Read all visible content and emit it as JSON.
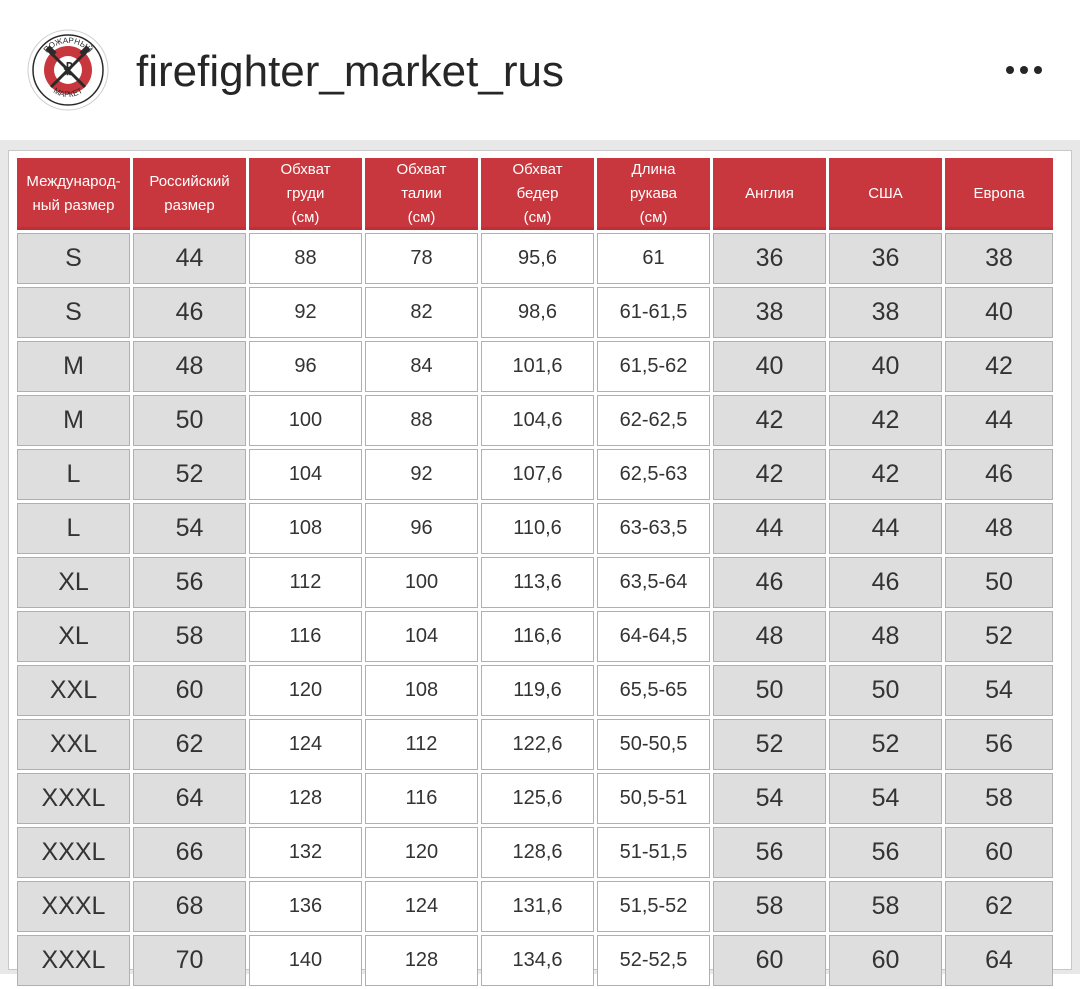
{
  "account": {
    "username": "firefighter_market_rus",
    "avatar_icon": "firefighter-market-logo-icon",
    "logo_text_top": "ПОЖАРНЫЙ",
    "logo_text_bottom": "МАРКЕТ",
    "more_icon": "more-horizontal-icon"
  },
  "colors": {
    "header_red": "#c8373d",
    "cell_gray": "#dedede"
  },
  "table": {
    "headers": [
      "Междунарoд-\nный размер",
      "Российский\nразмер",
      "Обхват\nгруди\n(см)",
      "Обхват\nталии\n(см)",
      "Обхват\nбедер\n(см)",
      "Длина\nрукава\n(см)",
      "Англия",
      "США",
      "Европа"
    ],
    "rows": [
      [
        "S",
        "44",
        "88",
        "78",
        "95,6",
        "61",
        "36",
        "36",
        "38"
      ],
      [
        "S",
        "46",
        "92",
        "82",
        "98,6",
        "61-61,5",
        "38",
        "38",
        "40"
      ],
      [
        "M",
        "48",
        "96",
        "84",
        "101,6",
        "61,5-62",
        "40",
        "40",
        "42"
      ],
      [
        "M",
        "50",
        "100",
        "88",
        "104,6",
        "62-62,5",
        "42",
        "42",
        "44"
      ],
      [
        "L",
        "52",
        "104",
        "92",
        "107,6",
        "62,5-63",
        "42",
        "42",
        "46"
      ],
      [
        "L",
        "54",
        "108",
        "96",
        "110,6",
        "63-63,5",
        "44",
        "44",
        "48"
      ],
      [
        "XL",
        "56",
        "112",
        "100",
        "113,6",
        "63,5-64",
        "46",
        "46",
        "50"
      ],
      [
        "XL",
        "58",
        "116",
        "104",
        "116,6",
        "64-64,5",
        "48",
        "48",
        "52"
      ],
      [
        "XXL",
        "60",
        "120",
        "108",
        "119,6",
        "65,5-65",
        "50",
        "50",
        "54"
      ],
      [
        "XXL",
        "62",
        "124",
        "112",
        "122,6",
        "50-50,5",
        "52",
        "52",
        "56"
      ],
      [
        "XXXL",
        "64",
        "128",
        "116",
        "125,6",
        "50,5-51",
        "54",
        "54",
        "58"
      ],
      [
        "XXXL",
        "66",
        "132",
        "120",
        "128,6",
        "51-51,5",
        "56",
        "56",
        "60"
      ],
      [
        "XXXL",
        "68",
        "136",
        "124",
        "131,6",
        "51,5-52",
        "58",
        "58",
        "62"
      ],
      [
        "XXXL",
        "70",
        "140",
        "128",
        "134,6",
        "52-52,5",
        "60",
        "60",
        "64"
      ]
    ]
  }
}
